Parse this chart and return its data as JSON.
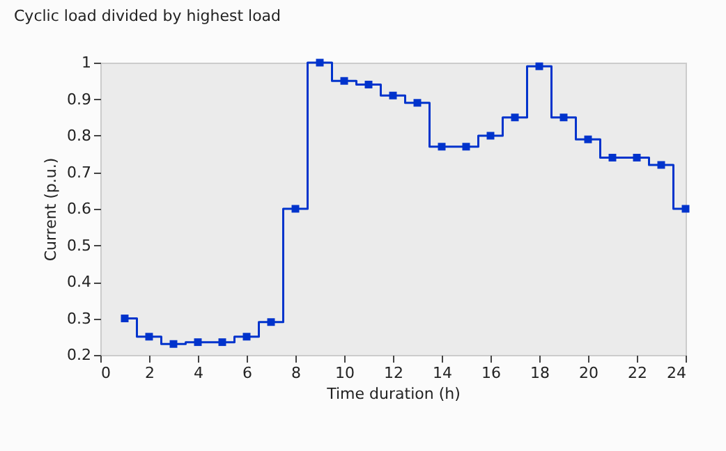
{
  "chart_data": {
    "type": "step",
    "title": "Cyclic load divided by highest load",
    "xlabel": "Time duration (h)",
    "ylabel": "Current (p.u.)",
    "x": [
      1,
      2,
      3,
      4,
      5,
      6,
      7,
      8,
      9,
      10,
      11,
      12,
      13,
      14,
      15,
      16,
      17,
      18,
      19,
      20,
      21,
      22,
      23,
      24
    ],
    "series": [
      {
        "color": "#0033cc",
        "values": [
          0.3,
          0.25,
          0.23,
          0.235,
          0.235,
          0.25,
          0.29,
          0.6,
          1.0,
          0.95,
          0.94,
          0.91,
          0.89,
          0.77,
          0.77,
          0.8,
          0.85,
          0.99,
          0.85,
          0.79,
          0.74,
          0.74,
          0.72,
          0.6
        ]
      }
    ],
    "xlim": [
      0,
      24
    ],
    "xticks": [
      0,
      2,
      4,
      6,
      8,
      10,
      12,
      14,
      16,
      18,
      20,
      22,
      24
    ],
    "ylim": [
      0.2,
      1
    ],
    "yticks": [
      0.2,
      0.3,
      0.4,
      0.5,
      0.6,
      0.7,
      0.8,
      0.9,
      1
    ],
    "grid": false,
    "marker": "square",
    "line_style": "solid"
  }
}
